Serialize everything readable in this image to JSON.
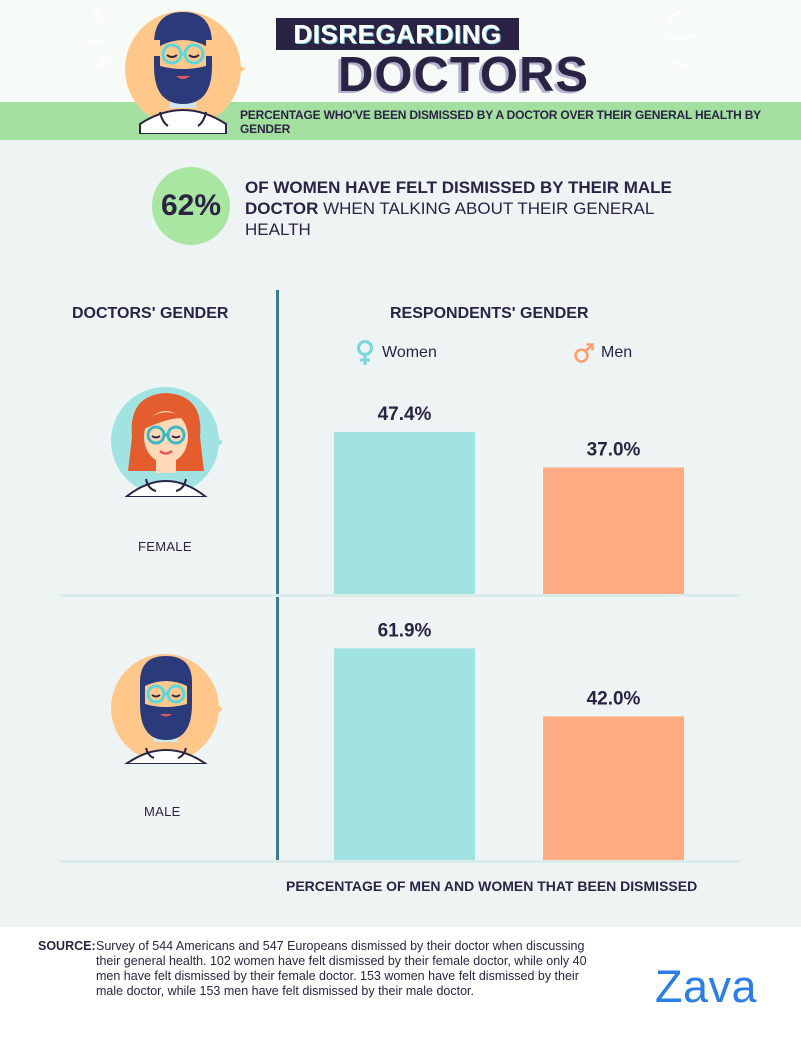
{
  "header": {
    "title_line1": "DISREGARDING",
    "title_line2": "DOCTORS",
    "subtitle": "Percentage who've been dismissed by a doctor over their general health by gender"
  },
  "highlight": {
    "value": "62%",
    "text_bold": "OF WOMEN HAVE FELT DISMISSED BY THEIR MALE DOCTOR",
    "text_regular": " WHEN TALKING ABOUT THEIR GENERAL HEALTH"
  },
  "columns": {
    "left_header": "DOCTORS' GENDER",
    "right_header": "RESPONDENTS' GENDER"
  },
  "chart_data": {
    "type": "bar",
    "categories": [
      "FEMALE",
      "MALE"
    ],
    "series": [
      {
        "name": "Women",
        "values": [
          47.4,
          61.9
        ],
        "labels": [
          "47.4%",
          "61.9%"
        ],
        "color": "#a1e2e2"
      },
      {
        "name": "Men",
        "values": [
          37.0,
          42.0
        ],
        "labels": [
          "37.0%",
          "42.0%"
        ],
        "color": "#ffab83"
      }
    ],
    "xlabel": "PERCENTAGE OF MEN AND WOMEN THAT BEEN DISMISSED",
    "ylim": [
      0,
      70
    ]
  },
  "source": {
    "label": "SOURCE:",
    "text": "Survey of 544 Americans and 547 Europeans dismissed by their doctor when discussing their general health. 102 women have felt dismissed by their female doctor, while only 40 men have felt dismissed by their female doctor. 153 women have felt dismissed by their male doctor, while 153 men have felt dismissed by their male doctor."
  },
  "brand": {
    "name": "Zava",
    "color": "#2a7ee6"
  },
  "colors": {
    "accent_green": "#a3e0a0",
    "navy": "#2b2344",
    "divider": "#3a7d93"
  }
}
